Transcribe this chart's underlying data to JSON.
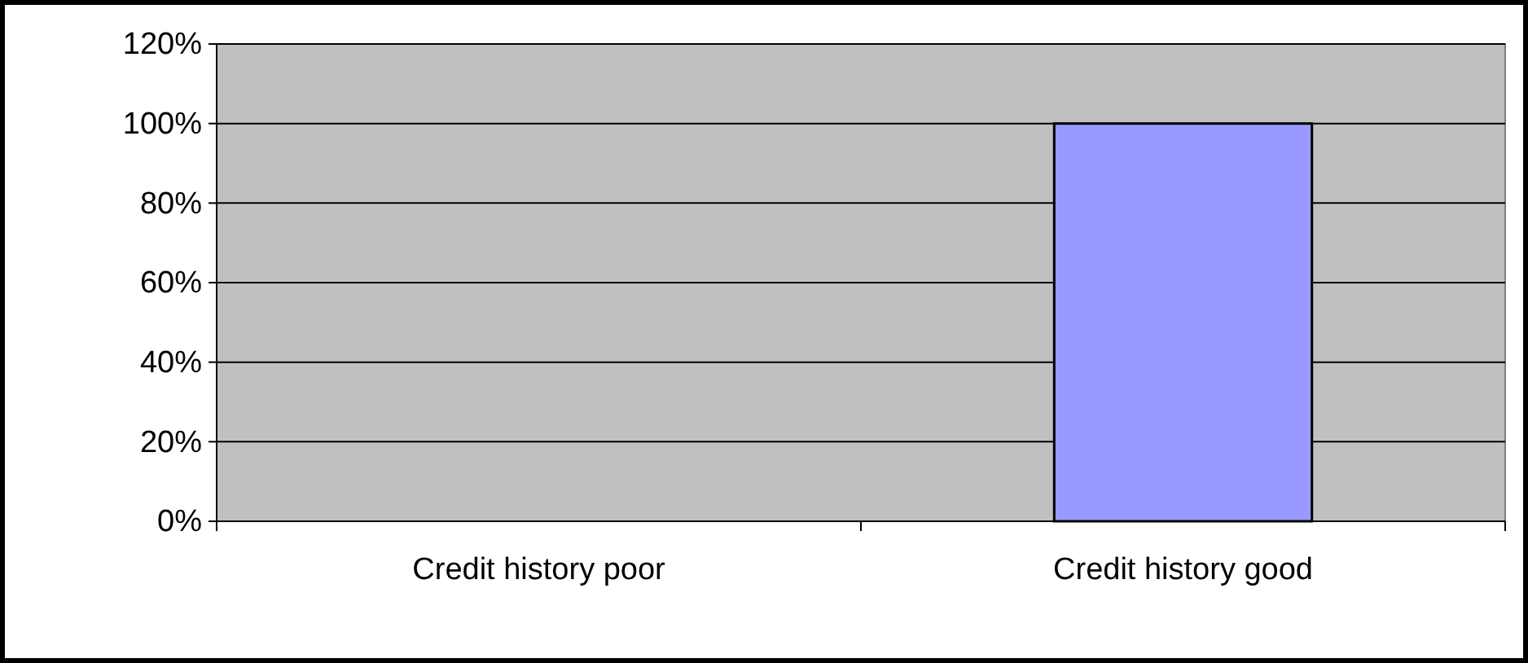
{
  "chart_data": {
    "type": "bar",
    "categories": [
      "Credit history poor",
      "Credit history good"
    ],
    "values": [
      0,
      100
    ],
    "color": "#9999ff",
    "ylim": [
      0,
      120
    ],
    "yticks": [
      {
        "value": 0,
        "label": "0%"
      },
      {
        "value": 20,
        "label": "20%"
      },
      {
        "value": 40,
        "label": "40%"
      },
      {
        "value": 60,
        "label": "60%"
      },
      {
        "value": 80,
        "label": "80%"
      },
      {
        "value": 100,
        "label": "100%"
      },
      {
        "value": 120,
        "label": "120%"
      }
    ],
    "grid": "y"
  }
}
